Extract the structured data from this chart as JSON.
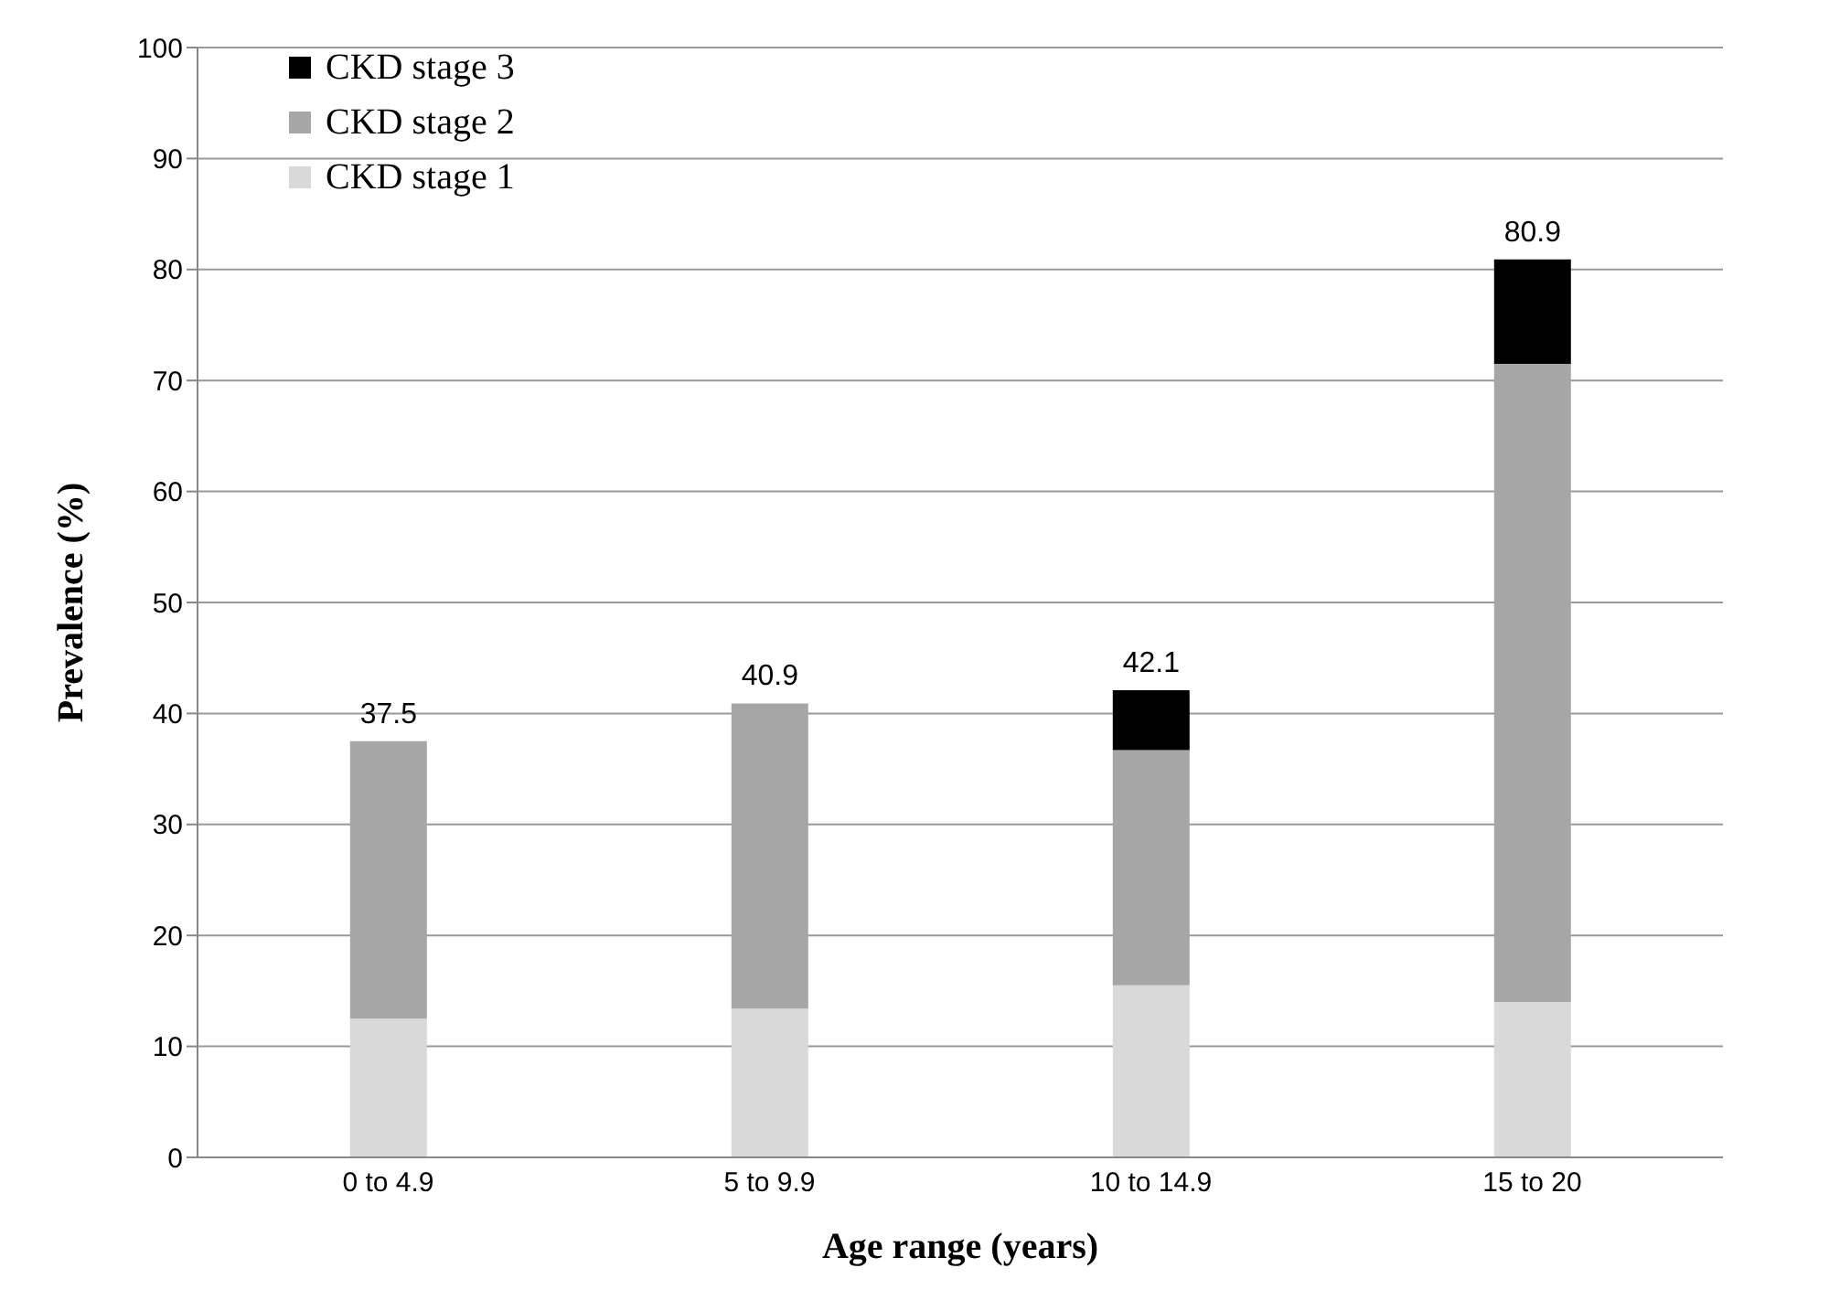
{
  "chart_data": {
    "type": "bar",
    "stacked": true,
    "xlabel": "Age range (years)",
    "ylabel": "Prevalence (%)",
    "categories": [
      "0 to 4.9",
      "5 to 9.9",
      "10 to 14.9",
      "15 to 20"
    ],
    "series": [
      {
        "name": "CKD stage 1",
        "color": "#d9d9d9",
        "values": [
          12.5,
          13.4,
          15.5,
          14.0
        ]
      },
      {
        "name": "CKD stage 2",
        "color": "#a6a6a6",
        "values": [
          25.0,
          27.5,
          21.2,
          57.5
        ]
      },
      {
        "name": "CKD stage 3",
        "color": "#000000",
        "values": [
          null,
          null,
          5.4,
          9.4
        ]
      }
    ],
    "totals": [
      "37.5",
      "40.9",
      "42.1",
      "80.9"
    ],
    "ylim": [
      0,
      100
    ],
    "yticks": [
      0,
      10,
      20,
      30,
      40,
      50,
      60,
      70,
      80,
      90,
      100
    ],
    "grid": "y",
    "legend": "top left"
  }
}
